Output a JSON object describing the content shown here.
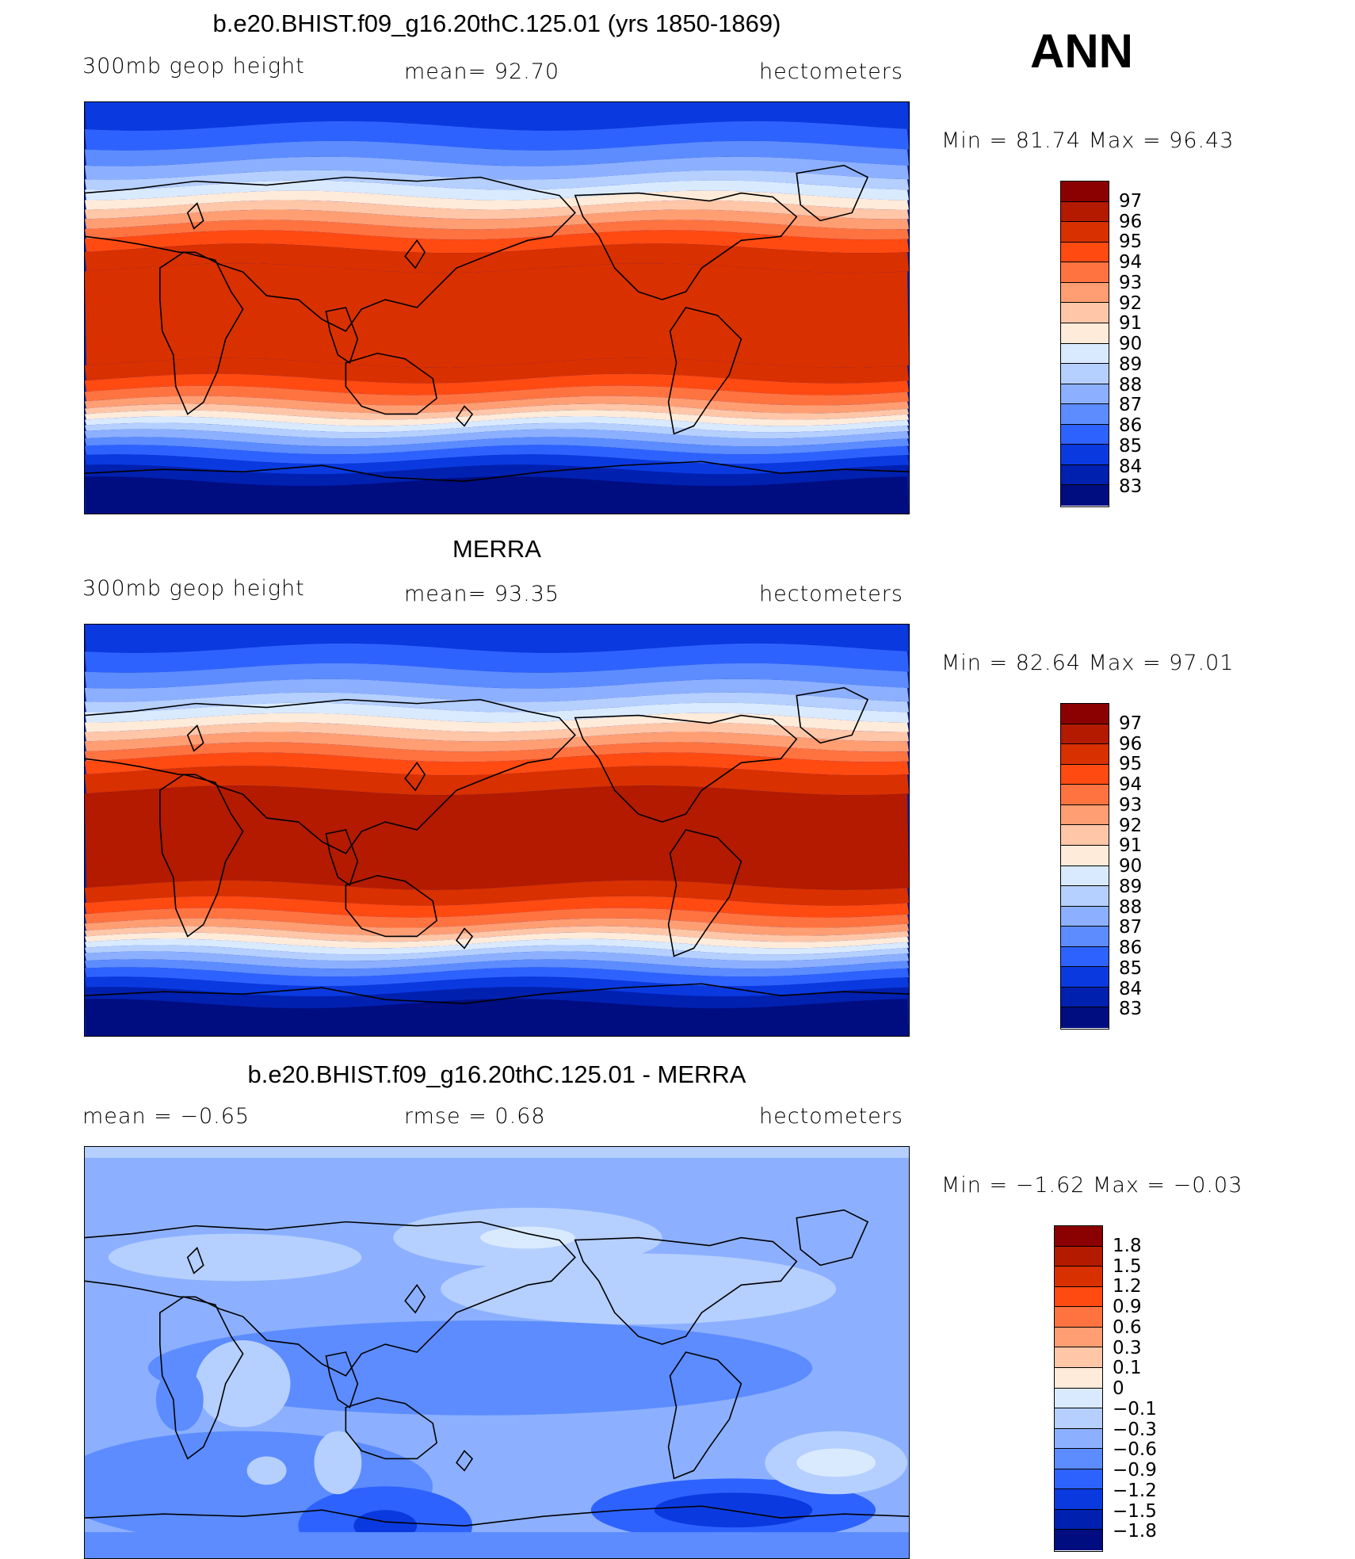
{
  "season": "ANN",
  "panels": [
    {
      "title": "b.e20.BHIST.f09_g16.20thC.125.01 (yrs 1850-1869)",
      "left_label": "300mb  geop  height",
      "center_label": "mean=   92.70",
      "right_label": "hectometers",
      "minmax": "Min  =    81.74  Max  =    96.43",
      "colorbar": {
        "labels": [
          "97",
          "96",
          "95",
          "94",
          "93",
          "92",
          "91",
          "90",
          "89",
          "88",
          "87",
          "86",
          "85",
          "84",
          "83"
        ],
        "colors": [
          "#8B0000",
          "#B31A00",
          "#D93000",
          "#FF4A12",
          "#FF7340",
          "#FF9E73",
          "#FFC6A8",
          "#FFEBD9",
          "#D9EAFF",
          "#B5CFFF",
          "#8CB0FF",
          "#5C8CFF",
          "#2E62FF",
          "#0A3ADF",
          "#0020B0",
          "#000D80"
        ]
      },
      "field": "model"
    },
    {
      "title": "MERRA",
      "left_label": "300mb  geop  height",
      "center_label": "mean=   93.35",
      "right_label": "hectometers",
      "minmax": "Min  =    82.64  Max  =    97.01",
      "colorbar": {
        "labels": [
          "97",
          "96",
          "95",
          "94",
          "93",
          "92",
          "91",
          "90",
          "89",
          "88",
          "87",
          "86",
          "85",
          "84",
          "83"
        ],
        "colors": [
          "#8B0000",
          "#B31A00",
          "#D93000",
          "#FF4A12",
          "#FF7340",
          "#FF9E73",
          "#FFC6A8",
          "#FFEBD9",
          "#D9EAFF",
          "#B5CFFF",
          "#8CB0FF",
          "#5C8CFF",
          "#2E62FF",
          "#0A3ADF",
          "#0020B0",
          "#000D80"
        ]
      },
      "field": "obs"
    },
    {
      "title": "b.e20.BHIST.f09_g16.20thC.125.01 - MERRA",
      "left_label": "mean  =    −0.65",
      "center_label": "rmse  =     0.68",
      "right_label": "hectometers",
      "minmax": "Min  =    −1.62  Max  =    −0.03",
      "colorbar": {
        "labels": [
          "1.8",
          "1.5",
          "1.2",
          "0.9",
          "0.6",
          "0.3",
          "0.1",
          "0",
          "−0.1",
          "−0.3",
          "−0.6",
          "−0.9",
          "−1.2",
          "−1.5",
          "−1.8"
        ],
        "colors": [
          "#8B0000",
          "#B31A00",
          "#D93000",
          "#FF4A12",
          "#FF7340",
          "#FF9E73",
          "#FFC6A8",
          "#FFEBD9",
          "#D9EAFF",
          "#B5CFFF",
          "#8CB0FF",
          "#5C8CFF",
          "#2E62FF",
          "#0A3ADF",
          "#0020B0",
          "#000D80"
        ]
      },
      "field": "diff"
    }
  ]
}
